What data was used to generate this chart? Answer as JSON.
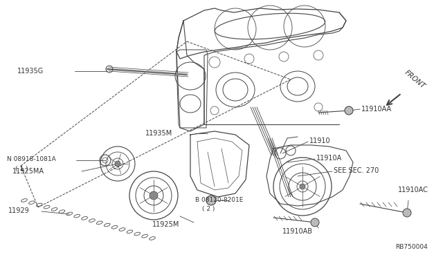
{
  "bg_color": "#ffffff",
  "lc": "#444444",
  "tc": "#333333",
  "fig_width": 6.4,
  "fig_height": 3.72,
  "dpi": 100,
  "xlim": [
    0,
    640
  ],
  "ylim": [
    0,
    372
  ]
}
